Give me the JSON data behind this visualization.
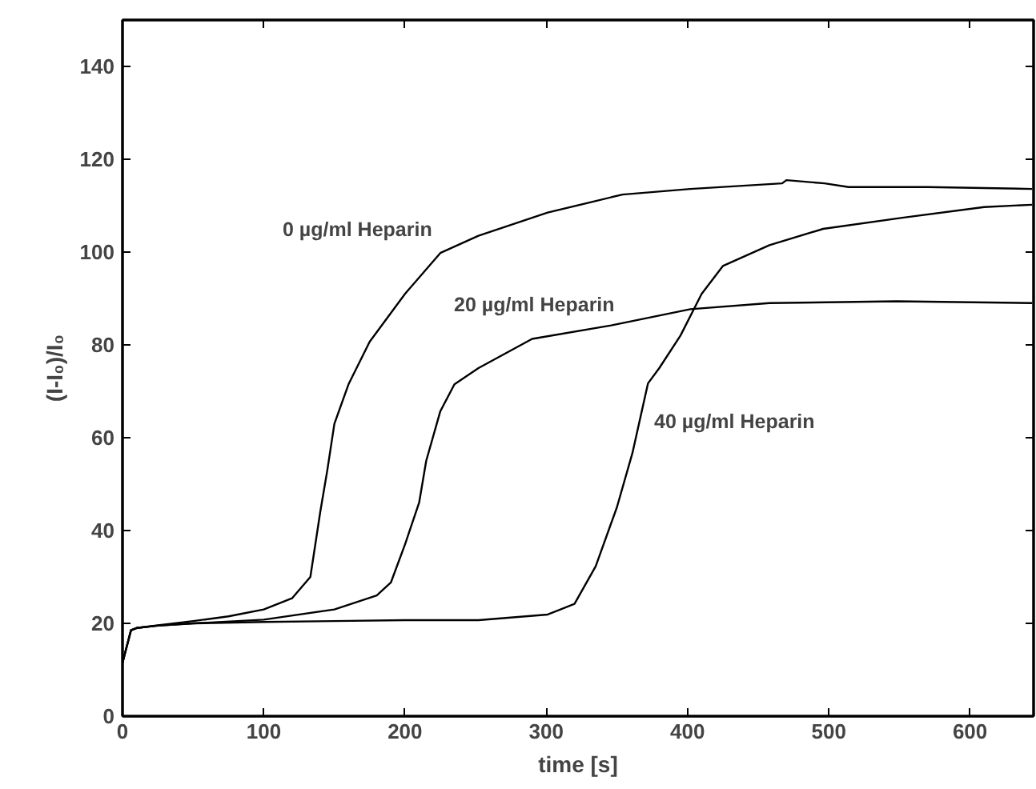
{
  "chart_data": {
    "type": "line",
    "xlabel": "time [s]",
    "ylabel": "(I-I₀)/I₀",
    "xlim": [
      0,
      645
    ],
    "ylim": [
      0,
      150
    ],
    "xticks": [
      0,
      100,
      200,
      300,
      400,
      500,
      600
    ],
    "yticks": [
      0,
      20,
      40,
      60,
      80,
      100,
      120,
      140
    ],
    "grid": false,
    "marker": "none",
    "line_style": "solid",
    "series": [
      {
        "color": "#000000",
        "x": [
          0,
          3,
          6,
          10,
          25,
          50,
          75,
          100,
          120,
          133,
          140,
          145,
          150,
          160,
          175,
          200,
          225,
          252,
          301,
          354,
          402,
          467,
          470,
          497,
          514,
          570,
          644
        ],
        "values": [
          11.5,
          15,
          18.5,
          19,
          19.6,
          20.5,
          21.5,
          23,
          25.4,
          30,
          44,
          53,
          63,
          71.5,
          80.7,
          91,
          99.8,
          103.5,
          108.5,
          112.4,
          113.6,
          114.8,
          115.5,
          114.8,
          114,
          114,
          113.6
        ]
      },
      {
        "color": "#000000",
        "x": [
          0,
          3,
          6,
          10,
          25,
          50,
          100,
          150,
          180,
          190,
          200,
          210,
          215,
          225,
          235,
          252,
          290,
          346,
          402,
          458,
          548,
          644
        ],
        "values": [
          11.5,
          15,
          18.5,
          19,
          19.5,
          20,
          20.8,
          23,
          26,
          28.8,
          37,
          46,
          55,
          65.7,
          71.5,
          75,
          81.3,
          84.2,
          87.7,
          89,
          89.4,
          89
        ]
      },
      {
        "color": "#000000",
        "x": [
          0,
          3,
          6,
          10,
          25,
          50,
          100,
          150,
          200,
          252,
          301,
          320,
          335,
          350,
          361,
          372,
          380,
          395,
          410,
          425,
          458,
          496,
          552,
          610,
          644
        ],
        "values": [
          11.5,
          15,
          18.5,
          19,
          19.5,
          20,
          20.3,
          20.5,
          20.7,
          20.7,
          21.9,
          24.2,
          32.3,
          45,
          56.7,
          71.7,
          75,
          82,
          91,
          97,
          101.5,
          105,
          107.4,
          109.7,
          110.2
        ]
      }
    ],
    "annotations": [
      "0 µg/ml Heparin",
      "20 µg/ml Heparin",
      "40 µg/ml Heparin"
    ]
  }
}
